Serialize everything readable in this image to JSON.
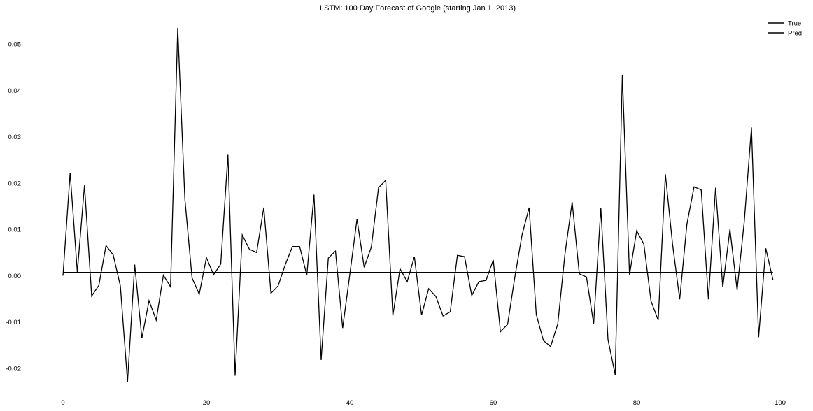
{
  "chart_data": {
    "type": "line",
    "title": "LSTM: 100 Day Forecast of Google (starting Jan 1, 2013)",
    "xlabel": "",
    "ylabel": "",
    "xlim": [
      0,
      100
    ],
    "ylim": [
      -0.025,
      0.055
    ],
    "xticks": [
      0,
      20,
      40,
      60,
      80,
      100
    ],
    "xtick_labels": [
      "0",
      "20",
      "40",
      "60",
      "80",
      "100"
    ],
    "yticks": [
      -0.02,
      -0.01,
      0.0,
      0.01,
      0.02,
      0.03,
      0.04,
      0.05
    ],
    "ytick_labels": [
      "-0.02",
      "-0.01",
      "0.00",
      "0.01",
      "0.02",
      "0.03",
      "0.04",
      "0.05"
    ],
    "grid": false,
    "legend_position": "top-right",
    "x": [
      0,
      1,
      2,
      3,
      4,
      5,
      6,
      7,
      8,
      9,
      10,
      11,
      12,
      13,
      14,
      15,
      16,
      17,
      18,
      19,
      20,
      21,
      22,
      23,
      24,
      25,
      26,
      27,
      28,
      29,
      30,
      31,
      32,
      33,
      34,
      35,
      36,
      37,
      38,
      39,
      40,
      41,
      42,
      43,
      44,
      45,
      46,
      47,
      48,
      49,
      50,
      51,
      52,
      53,
      54,
      55,
      56,
      57,
      58,
      59,
      60,
      61,
      62,
      63,
      64,
      65,
      66,
      67,
      68,
      69,
      70,
      71,
      72,
      73,
      74,
      75,
      76,
      77,
      78,
      79,
      80,
      81,
      82,
      83,
      84,
      85,
      86,
      87,
      88,
      89,
      90,
      91,
      92,
      93,
      94,
      95,
      96,
      97,
      98,
      99
    ],
    "series": [
      {
        "name": "True",
        "color": "#000000",
        "values": [
          0.0,
          0.0222,
          0.0008,
          0.0195,
          -0.0044,
          -0.0021,
          0.0065,
          0.0045,
          -0.0022,
          -0.0229,
          0.0024,
          -0.0135,
          -0.0054,
          -0.0096,
          0.0001,
          -0.0024,
          0.0535,
          0.0165,
          -0.0005,
          -0.004,
          0.0039,
          0.0002,
          0.0025,
          0.0261,
          -0.0216,
          0.0088,
          0.0057,
          0.005,
          0.0147,
          -0.0038,
          -0.0022,
          0.0024,
          0.0063,
          0.0063,
          0.0001,
          0.0175,
          -0.0182,
          0.0038,
          0.0053,
          -0.0113,
          0.0003,
          0.0122,
          0.0018,
          0.0062,
          0.019,
          0.0206,
          -0.0086,
          0.0015,
          -0.0013,
          0.0041,
          -0.0085,
          -0.0028,
          -0.0045,
          -0.0087,
          -0.0078,
          0.0044,
          0.0041,
          -0.0043,
          -0.0013,
          -0.001,
          0.0034,
          -0.0121,
          -0.0105,
          -0.0004,
          0.0087,
          0.0147,
          -0.0084,
          -0.014,
          -0.0153,
          -0.0104,
          0.0047,
          0.0159,
          0.0004,
          -0.0003,
          -0.0104,
          0.0146,
          -0.0138,
          -0.0214,
          0.0434,
          0.0002,
          0.0097,
          0.0068,
          -0.0055,
          -0.0096,
          0.0219,
          0.0068,
          -0.0051,
          0.0111,
          0.0192,
          0.0185,
          -0.0051,
          0.019,
          -0.0025,
          0.01,
          -0.0031,
          0.0117,
          0.032,
          -0.0133,
          0.0059,
          -0.0009
        ]
      },
      {
        "name": "Pred",
        "color": "#000000",
        "values": [
          0.0007,
          0.0007,
          0.0007,
          0.0007,
          0.0007,
          0.0007,
          0.0007,
          0.0007,
          0.0007,
          0.0007,
          0.0007,
          0.0007,
          0.0007,
          0.0007,
          0.0007,
          0.0007,
          0.0007,
          0.0007,
          0.0007,
          0.0007,
          0.0007,
          0.0007,
          0.0007,
          0.0007,
          0.0007,
          0.0007,
          0.0007,
          0.0007,
          0.0007,
          0.0007,
          0.0007,
          0.0007,
          0.0007,
          0.0007,
          0.0007,
          0.0007,
          0.0007,
          0.0007,
          0.0007,
          0.0007,
          0.0007,
          0.0007,
          0.0007,
          0.0007,
          0.0007,
          0.0007,
          0.0007,
          0.0007,
          0.0007,
          0.0007,
          0.0007,
          0.0007,
          0.0007,
          0.0007,
          0.0007,
          0.0007,
          0.0007,
          0.0007,
          0.0007,
          0.0007,
          0.0007,
          0.0007,
          0.0007,
          0.0007,
          0.0007,
          0.0007,
          0.0007,
          0.0007,
          0.0007,
          0.0007,
          0.0007,
          0.0007,
          0.0007,
          0.0007,
          0.0007,
          0.0007,
          0.0007,
          0.0007,
          0.0007,
          0.0007,
          0.0007,
          0.0007,
          0.0007,
          0.0007,
          0.0007,
          0.0007,
          0.0007,
          0.0007,
          0.0007,
          0.0007,
          0.0007,
          0.0007,
          0.0007,
          0.0007,
          0.0007,
          0.0007,
          0.0007,
          0.0007,
          0.0007,
          0.0007
        ]
      }
    ]
  }
}
